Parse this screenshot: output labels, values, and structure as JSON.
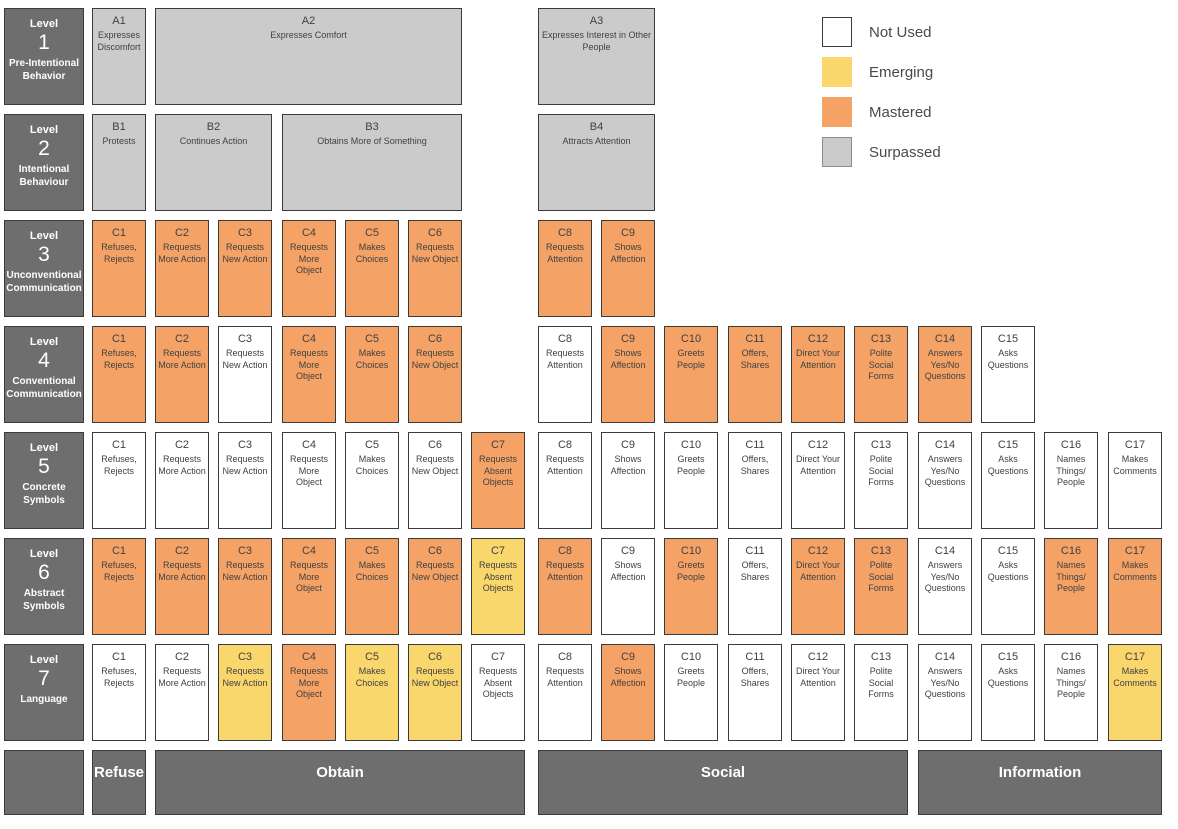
{
  "chart_data": {
    "type": "heatmap",
    "title": "",
    "legend_position": "top-right",
    "legend": [
      {
        "label": "Not Used",
        "status": "not_used",
        "color": "#FFFFFF"
      },
      {
        "label": "Emerging",
        "status": "emerging",
        "color": "#FAD76D"
      },
      {
        "label": "Mastered",
        "status": "mastered",
        "color": "#F4A266"
      },
      {
        "label": "Surpassed",
        "status": "surpassed",
        "color": "#CBCBCB"
      }
    ],
    "header_fill": "#6E6E6E",
    "level_word": "Level",
    "cell_labels": {
      "C1": "Refuses, Rejects",
      "C2": "Requests More Action",
      "C3": "Requests New Action",
      "C4": "Requests More Object",
      "C5": "Makes Choices",
      "C6": "Requests New Object",
      "C7": "Requests Absent Objects",
      "C8": "Requests Attention",
      "C9": "Shows Affection",
      "C10": "Greets People",
      "C11": "Offers, Shares",
      "C12": "Direct Your Attention",
      "C13": "Polite Social Forms",
      "C14": "Answers Yes/No Questions",
      "C15": "Asks Questions",
      "C16": "Names Things/ People",
      "C17": "Makes Comments"
    },
    "levels": [
      {
        "number": "1",
        "name": "Pre-Intentional Behavior",
        "cells": [
          {
            "code": "A1",
            "label": "Expresses Discomfort",
            "col": 1,
            "span": 1,
            "status": "surpassed"
          },
          {
            "code": "A2",
            "label": "Expresses Comfort",
            "col": 2,
            "span": 5,
            "status": "surpassed"
          },
          {
            "code": "A3",
            "label": "Expresses Interest in Other People",
            "col": 8,
            "span": 2,
            "status": "surpassed"
          }
        ]
      },
      {
        "number": "2",
        "name": "Intentional Behaviour",
        "cells": [
          {
            "code": "B1",
            "label": "Protests",
            "col": 1,
            "span": 1,
            "status": "surpassed"
          },
          {
            "code": "B2",
            "label": "Continues Action",
            "col": 2,
            "span": 2,
            "status": "surpassed"
          },
          {
            "code": "B3",
            "label": "Obtains More of Something",
            "col": 4,
            "span": 3,
            "status": "surpassed"
          },
          {
            "code": "B4",
            "label": "Attracts Attention",
            "col": 8,
            "span": 2,
            "status": "surpassed"
          }
        ]
      },
      {
        "number": "3",
        "name": "Unconventional Communication",
        "cells": [
          {
            "code": "C1",
            "status": "mastered"
          },
          {
            "code": "C2",
            "status": "mastered"
          },
          {
            "code": "C3",
            "status": "mastered"
          },
          {
            "code": "C4",
            "status": "mastered"
          },
          {
            "code": "C5",
            "status": "mastered"
          },
          {
            "code": "C6",
            "status": "mastered"
          },
          {
            "code": "C8",
            "status": "mastered"
          },
          {
            "code": "C9",
            "status": "mastered"
          }
        ]
      },
      {
        "number": "4",
        "name": "Conventional Communication",
        "cells": [
          {
            "code": "C1",
            "status": "mastered"
          },
          {
            "code": "C2",
            "status": "mastered"
          },
          {
            "code": "C3",
            "status": "not_used"
          },
          {
            "code": "C4",
            "status": "mastered"
          },
          {
            "code": "C5",
            "status": "mastered"
          },
          {
            "code": "C6",
            "status": "mastered"
          },
          {
            "code": "C8",
            "status": "not_used"
          },
          {
            "code": "C9",
            "status": "mastered"
          },
          {
            "code": "C10",
            "status": "mastered"
          },
          {
            "code": "C11",
            "status": "mastered"
          },
          {
            "code": "C12",
            "status": "mastered"
          },
          {
            "code": "C13",
            "status": "mastered"
          },
          {
            "code": "C14",
            "status": "mastered"
          },
          {
            "code": "C15",
            "status": "not_used"
          }
        ]
      },
      {
        "number": "5",
        "name": "Concrete Symbols",
        "cells": [
          {
            "code": "C1",
            "status": "not_used"
          },
          {
            "code": "C2",
            "status": "not_used"
          },
          {
            "code": "C3",
            "status": "not_used"
          },
          {
            "code": "C4",
            "status": "not_used"
          },
          {
            "code": "C5",
            "status": "not_used"
          },
          {
            "code": "C6",
            "status": "not_used"
          },
          {
            "code": "C7",
            "status": "mastered"
          },
          {
            "code": "C8",
            "status": "not_used"
          },
          {
            "code": "C9",
            "status": "not_used"
          },
          {
            "code": "C10",
            "status": "not_used"
          },
          {
            "code": "C11",
            "status": "not_used"
          },
          {
            "code": "C12",
            "status": "not_used"
          },
          {
            "code": "C13",
            "status": "not_used"
          },
          {
            "code": "C14",
            "status": "not_used"
          },
          {
            "code": "C15",
            "status": "not_used"
          },
          {
            "code": "C16",
            "status": "not_used"
          },
          {
            "code": "C17",
            "status": "not_used"
          }
        ]
      },
      {
        "number": "6",
        "name": "Abstract Symbols",
        "cells": [
          {
            "code": "C1",
            "status": "mastered"
          },
          {
            "code": "C2",
            "status": "mastered"
          },
          {
            "code": "C3",
            "status": "mastered"
          },
          {
            "code": "C4",
            "status": "mastered"
          },
          {
            "code": "C5",
            "status": "mastered"
          },
          {
            "code": "C6",
            "status": "mastered"
          },
          {
            "code": "C7",
            "status": "emerging"
          },
          {
            "code": "C8",
            "status": "mastered"
          },
          {
            "code": "C9",
            "status": "not_used"
          },
          {
            "code": "C10",
            "status": "mastered"
          },
          {
            "code": "C11",
            "status": "not_used"
          },
          {
            "code": "C12",
            "status": "mastered"
          },
          {
            "code": "C13",
            "status": "mastered"
          },
          {
            "code": "C14",
            "status": "not_used"
          },
          {
            "code": "C15",
            "status": "not_used"
          },
          {
            "code": "C16",
            "status": "mastered"
          },
          {
            "code": "C17",
            "status": "mastered"
          }
        ]
      },
      {
        "number": "7",
        "name": "Language",
        "cells": [
          {
            "code": "C1",
            "status": "not_used"
          },
          {
            "code": "C2",
            "status": "not_used"
          },
          {
            "code": "C3",
            "status": "emerging"
          },
          {
            "code": "C4",
            "status": "mastered"
          },
          {
            "code": "C5",
            "status": "emerging"
          },
          {
            "code": "C6",
            "status": "emerging"
          },
          {
            "code": "C7",
            "status": "not_used"
          },
          {
            "code": "C8",
            "status": "not_used"
          },
          {
            "code": "C9",
            "status": "mastered"
          },
          {
            "code": "C10",
            "status": "not_used"
          },
          {
            "code": "C11",
            "status": "not_used"
          },
          {
            "code": "C12",
            "status": "not_used"
          },
          {
            "code": "C13",
            "status": "not_used"
          },
          {
            "code": "C14",
            "status": "not_used"
          },
          {
            "code": "C15",
            "status": "not_used"
          },
          {
            "code": "C16",
            "status": "not_used"
          },
          {
            "code": "C17",
            "status": "not_used"
          },
          {
            "code": "C17",
            "status": "emerging",
            "override": true
          }
        ]
      }
    ],
    "footer_categories": [
      {
        "label": "",
        "col": 0,
        "span": 1
      },
      {
        "label": "Refuse",
        "col": 1,
        "span": 1
      },
      {
        "label": "Obtain",
        "col": 2,
        "span": 6
      },
      {
        "label": "Social",
        "col": 8,
        "span": 6
      },
      {
        "label": "Information",
        "col": 14,
        "span": 4
      }
    ]
  }
}
